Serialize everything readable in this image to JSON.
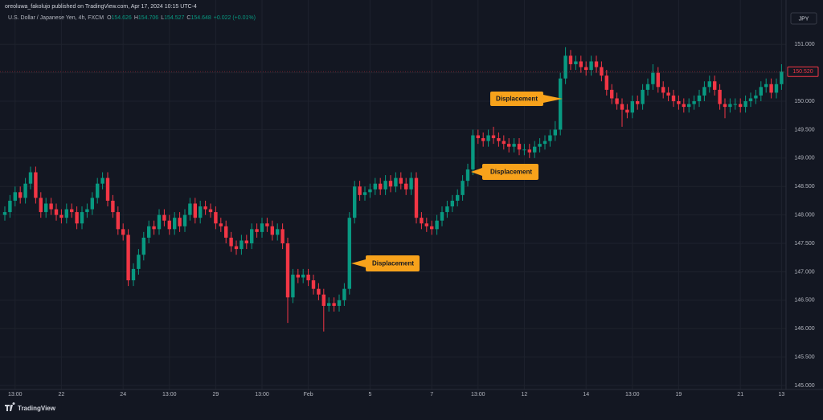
{
  "header": {
    "publisher": "oreoluwa_fakolujo published on TradingView.com, Apr 17, 2024 10:15 UTC-4",
    "brand": "TradingView"
  },
  "chart_data": {
    "type": "candlestick",
    "symbol": "U.S. Dollar / Japanese Yen, 4h, FXCM",
    "info": [
      {
        "label": "O",
        "value": 154.626
      },
      {
        "label": "H",
        "value": 154.706
      },
      {
        "label": "L",
        "value": 154.527
      },
      {
        "label": "C",
        "value": 154.648
      }
    ],
    "change": "+0.022 (+0.01%)",
    "currency": "JPY",
    "up_color": "#089981",
    "down_color": "#f23645",
    "grid": true,
    "ylim": [
      144.93,
      151.78
    ],
    "yticks": [
      {
        "value": 145,
        "label": "145.000"
      },
      {
        "value": 145.5,
        "label": "145.500"
      },
      {
        "value": 146,
        "label": "146.000"
      },
      {
        "value": 146.5,
        "label": "146.500"
      },
      {
        "value": 147,
        "label": "147.000"
      },
      {
        "value": 147.5,
        "label": "147.500"
      },
      {
        "value": 148,
        "label": "148.000"
      },
      {
        "value": 148.5,
        "label": "148.500"
      },
      {
        "value": 149,
        "label": "149.000"
      },
      {
        "value": 149.5,
        "label": "149.500"
      },
      {
        "value": 150,
        "label": "150.000"
      },
      {
        "value": 150.5,
        "label": "150.500"
      },
      {
        "value": 151,
        "label": "151.000"
      }
    ],
    "last_price": {
      "value": 150.52,
      "label": "150.520"
    },
    "annotations": [
      "Displacement",
      "Displacement",
      "Displacement"
    ],
    "x": [
      null,
      null,
      "13:00",
      null,
      null,
      null,
      null,
      null,
      null,
      null,
      null,
      "22",
      null,
      null,
      null,
      null,
      null,
      null,
      null,
      null,
      null,
      null,
      null,
      "24",
      null,
      null,
      null,
      null,
      null,
      null,
      null,
      null,
      "13:00",
      null,
      null,
      null,
      null,
      null,
      null,
      null,
      null,
      "29",
      null,
      null,
      null,
      null,
      null,
      null,
      null,
      null,
      "13:00",
      null,
      null,
      null,
      null,
      null,
      null,
      null,
      null,
      "Feb",
      null,
      null,
      null,
      null,
      null,
      null,
      null,
      null,
      null,
      null,
      null,
      "5",
      null,
      null,
      null,
      null,
      null,
      null,
      null,
      null,
      null,
      null,
      null,
      "7",
      null,
      null,
      null,
      null,
      null,
      null,
      null,
      null,
      "13:00",
      null,
      null,
      null,
      null,
      null,
      null,
      null,
      null,
      "12",
      null,
      null,
      null,
      null,
      null,
      null,
      null,
      null,
      null,
      null,
      null,
      "14",
      null,
      null,
      null,
      null,
      null,
      null,
      null,
      null,
      "13:00",
      null,
      null,
      null,
      null,
      null,
      null,
      null,
      null,
      "19",
      null,
      null,
      null,
      null,
      null,
      null,
      null,
      null,
      null,
      null,
      null,
      "21",
      null,
      null,
      null,
      null,
      null,
      null,
      null,
      "13"
    ],
    "ohlc": [
      [
        148.0,
        148.15,
        147.9,
        148.05
      ],
      [
        148.05,
        148.35,
        147.95,
        148.25
      ],
      [
        148.25,
        148.5,
        148.15,
        148.4
      ],
      [
        148.4,
        148.5,
        148.2,
        148.3
      ],
      [
        148.3,
        148.65,
        148.2,
        148.55
      ],
      [
        148.55,
        148.85,
        148.45,
        148.75
      ],
      [
        148.75,
        148.85,
        148.2,
        148.3
      ],
      [
        148.3,
        148.4,
        147.95,
        148.05
      ],
      [
        148.05,
        148.3,
        147.95,
        148.2
      ],
      [
        148.2,
        148.3,
        148.0,
        148.1
      ],
      [
        148.1,
        148.2,
        147.9,
        148.0
      ],
      [
        148.0,
        148.1,
        147.85,
        147.95
      ],
      [
        147.95,
        148.2,
        147.85,
        148.1
      ],
      [
        148.1,
        148.2,
        147.95,
        148.05
      ],
      [
        148.05,
        148.15,
        147.75,
        147.85
      ],
      [
        147.85,
        148.15,
        147.75,
        148.05
      ],
      [
        148.05,
        148.2,
        147.95,
        148.1
      ],
      [
        148.1,
        148.4,
        148.0,
        148.3
      ],
      [
        148.3,
        148.65,
        148.2,
        148.55
      ],
      [
        148.55,
        148.75,
        148.45,
        148.65
      ],
      [
        148.65,
        148.75,
        148.15,
        148.25
      ],
      [
        148.25,
        148.35,
        147.95,
        148.05
      ],
      [
        148.05,
        148.15,
        147.65,
        147.75
      ],
      [
        147.75,
        147.85,
        147.55,
        147.65
      ],
      [
        147.65,
        147.75,
        146.75,
        146.85
      ],
      [
        146.85,
        147.15,
        146.75,
        147.05
      ],
      [
        147.05,
        147.4,
        146.95,
        147.3
      ],
      [
        147.3,
        147.7,
        147.2,
        147.6
      ],
      [
        147.6,
        147.9,
        147.5,
        147.8
      ],
      [
        147.8,
        147.9,
        147.65,
        147.75
      ],
      [
        147.75,
        148.1,
        147.65,
        148.0
      ],
      [
        148.0,
        148.1,
        147.8,
        147.9
      ],
      [
        147.9,
        148.0,
        147.65,
        147.75
      ],
      [
        147.75,
        148.05,
        147.65,
        147.95
      ],
      [
        147.95,
        148.05,
        147.7,
        147.8
      ],
      [
        147.8,
        148.1,
        147.7,
        148.0
      ],
      [
        148.0,
        148.3,
        147.9,
        148.2
      ],
      [
        148.2,
        148.3,
        147.85,
        147.95
      ],
      [
        147.95,
        148.25,
        147.85,
        148.15
      ],
      [
        148.15,
        148.25,
        148.0,
        148.1
      ],
      [
        148.1,
        148.2,
        147.95,
        148.05
      ],
      [
        148.05,
        148.15,
        147.75,
        147.85
      ],
      [
        147.85,
        147.95,
        147.7,
        147.8
      ],
      [
        147.8,
        147.9,
        147.5,
        147.6
      ],
      [
        147.6,
        147.7,
        147.35,
        147.45
      ],
      [
        147.45,
        147.55,
        147.3,
        147.4
      ],
      [
        147.4,
        147.65,
        147.3,
        147.55
      ],
      [
        147.55,
        147.65,
        147.4,
        147.5
      ],
      [
        147.5,
        147.85,
        147.4,
        147.75
      ],
      [
        147.75,
        147.85,
        147.6,
        147.7
      ],
      [
        147.7,
        147.95,
        147.6,
        147.85
      ],
      [
        147.85,
        147.95,
        147.7,
        147.8
      ],
      [
        147.8,
        147.9,
        147.55,
        147.65
      ],
      [
        147.65,
        147.85,
        147.55,
        147.75
      ],
      [
        147.75,
        147.85,
        147.4,
        147.5
      ],
      [
        147.5,
        147.6,
        146.1,
        146.55
      ],
      [
        146.55,
        147.05,
        146.45,
        146.95
      ],
      [
        146.95,
        147.05,
        146.8,
        146.9
      ],
      [
        146.9,
        147.05,
        146.8,
        146.95
      ],
      [
        146.95,
        147.05,
        146.75,
        146.85
      ],
      [
        146.85,
        146.95,
        146.6,
        146.7
      ],
      [
        146.7,
        146.8,
        146.5,
        146.6
      ],
      [
        146.6,
        146.7,
        145.95,
        146.4
      ],
      [
        146.4,
        146.55,
        146.3,
        146.45
      ],
      [
        146.45,
        146.55,
        146.3,
        146.4
      ],
      [
        146.4,
        146.6,
        146.3,
        146.5
      ],
      [
        146.5,
        146.8,
        146.4,
        146.7
      ],
      [
        146.7,
        148.05,
        146.6,
        147.95
      ],
      [
        147.95,
        148.6,
        147.85,
        148.5
      ],
      [
        148.5,
        148.6,
        148.25,
        148.35
      ],
      [
        148.35,
        148.5,
        148.25,
        148.4
      ],
      [
        148.4,
        148.55,
        148.3,
        148.45
      ],
      [
        148.45,
        148.65,
        148.35,
        148.55
      ],
      [
        148.55,
        148.65,
        148.35,
        148.45
      ],
      [
        148.45,
        148.7,
        148.35,
        148.6
      ],
      [
        148.6,
        148.7,
        148.4,
        148.5
      ],
      [
        148.5,
        148.75,
        148.4,
        148.65
      ],
      [
        148.65,
        148.75,
        148.45,
        148.55
      ],
      [
        148.55,
        148.65,
        148.35,
        148.45
      ],
      [
        148.45,
        148.75,
        148.35,
        148.65
      ],
      [
        148.65,
        148.75,
        147.85,
        147.95
      ],
      [
        147.95,
        148.05,
        147.75,
        147.85
      ],
      [
        147.85,
        147.95,
        147.7,
        147.8
      ],
      [
        147.8,
        147.9,
        147.65,
        147.75
      ],
      [
        147.75,
        148.0,
        147.65,
        147.9
      ],
      [
        147.9,
        148.15,
        147.8,
        148.05
      ],
      [
        148.05,
        148.25,
        147.95,
        148.15
      ],
      [
        148.15,
        148.35,
        148.05,
        148.25
      ],
      [
        148.25,
        148.45,
        148.15,
        148.35
      ],
      [
        148.35,
        148.7,
        148.25,
        148.6
      ],
      [
        148.6,
        148.9,
        148.5,
        148.8
      ],
      [
        148.8,
        149.5,
        148.7,
        149.4
      ],
      [
        149.4,
        149.5,
        149.25,
        149.35
      ],
      [
        149.35,
        149.45,
        149.2,
        149.3
      ],
      [
        149.3,
        149.5,
        149.2,
        149.4
      ],
      [
        149.4,
        149.55,
        149.25,
        149.35
      ],
      [
        149.35,
        149.45,
        149.2,
        149.3
      ],
      [
        149.3,
        149.4,
        149.15,
        149.25
      ],
      [
        149.25,
        149.35,
        149.1,
        149.2
      ],
      [
        149.2,
        149.35,
        149.1,
        149.25
      ],
      [
        149.25,
        149.35,
        149.05,
        149.15
      ],
      [
        149.15,
        149.25,
        149.05,
        149.15
      ],
      [
        149.15,
        149.25,
        149.0,
        149.1
      ],
      [
        149.1,
        149.3,
        149.0,
        149.2
      ],
      [
        149.2,
        149.35,
        149.1,
        149.25
      ],
      [
        149.25,
        149.4,
        149.15,
        149.3
      ],
      [
        149.3,
        149.5,
        149.2,
        149.4
      ],
      [
        149.4,
        149.65,
        149.3,
        149.5
      ],
      [
        149.5,
        150.5,
        149.4,
        150.4
      ],
      [
        150.4,
        150.95,
        150.3,
        150.8
      ],
      [
        150.8,
        150.9,
        150.55,
        150.65
      ],
      [
        150.65,
        150.8,
        150.55,
        150.7
      ],
      [
        150.7,
        150.8,
        150.5,
        150.6
      ],
      [
        150.6,
        150.7,
        150.45,
        150.55
      ],
      [
        150.55,
        150.8,
        150.45,
        150.7
      ],
      [
        150.7,
        150.8,
        150.5,
        150.6
      ],
      [
        150.6,
        150.7,
        150.35,
        150.45
      ],
      [
        150.45,
        150.55,
        150.1,
        150.2
      ],
      [
        150.2,
        150.3,
        149.95,
        150.05
      ],
      [
        150.05,
        150.15,
        149.85,
        149.95
      ],
      [
        149.95,
        150.05,
        149.55,
        149.85
      ],
      [
        149.85,
        149.95,
        149.7,
        149.8
      ],
      [
        149.8,
        150.1,
        149.7,
        150.0
      ],
      [
        150.0,
        150.1,
        149.85,
        149.95
      ],
      [
        149.95,
        150.3,
        149.85,
        150.2
      ],
      [
        150.2,
        150.4,
        150.1,
        150.3
      ],
      [
        150.3,
        150.65,
        150.2,
        150.5
      ],
      [
        150.5,
        150.6,
        150.15,
        150.25
      ],
      [
        150.25,
        150.35,
        150.05,
        150.15
      ],
      [
        150.15,
        150.25,
        150.0,
        150.1
      ],
      [
        150.1,
        150.2,
        149.9,
        150.0
      ],
      [
        150.0,
        150.1,
        149.85,
        149.95
      ],
      [
        149.95,
        150.05,
        149.8,
        149.9
      ],
      [
        149.9,
        150.05,
        149.8,
        149.95
      ],
      [
        149.95,
        150.1,
        149.85,
        150.0
      ],
      [
        150.0,
        150.2,
        149.9,
        150.1
      ],
      [
        150.1,
        150.35,
        150.0,
        150.25
      ],
      [
        150.25,
        150.45,
        150.15,
        150.35
      ],
      [
        150.35,
        150.45,
        150.1,
        150.2
      ],
      [
        150.2,
        150.3,
        149.85,
        149.95
      ],
      [
        149.95,
        150.05,
        149.7,
        149.9
      ],
      [
        149.9,
        150.05,
        149.8,
        149.95
      ],
      [
        149.95,
        150.05,
        149.85,
        149.95
      ],
      [
        149.95,
        150.05,
        149.8,
        149.9
      ],
      [
        149.9,
        150.1,
        149.8,
        150.0
      ],
      [
        150.0,
        150.15,
        149.9,
        150.05
      ],
      [
        150.05,
        150.2,
        149.95,
        150.1
      ],
      [
        150.1,
        150.35,
        150.0,
        150.25
      ],
      [
        150.25,
        150.4,
        150.15,
        150.3
      ],
      [
        150.3,
        150.4,
        150.05,
        150.15
      ],
      [
        150.15,
        150.4,
        150.05,
        150.3
      ],
      [
        150.3,
        150.65,
        150.2,
        150.52
      ]
    ]
  }
}
